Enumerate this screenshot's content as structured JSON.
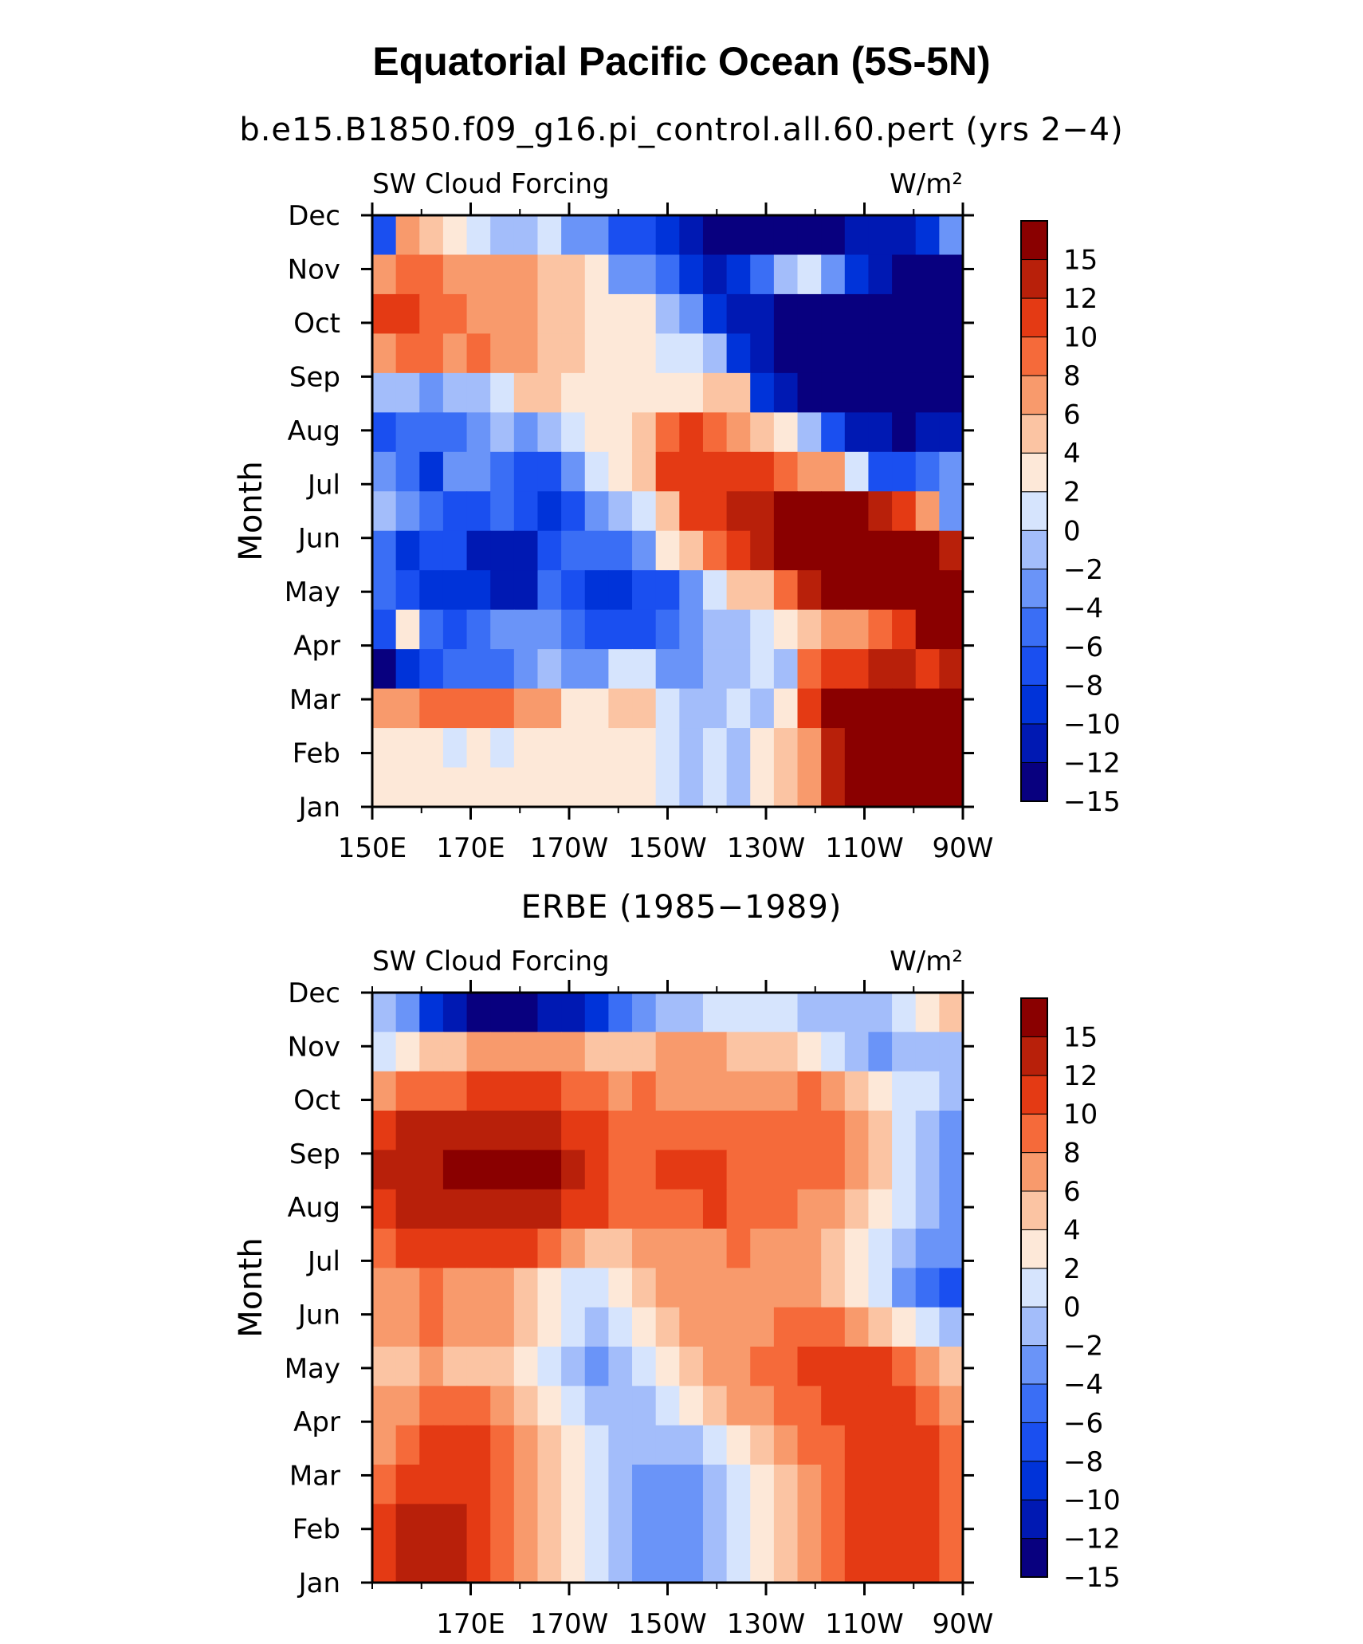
{
  "title": "Equatorial Pacific Ocean (5S-5N)",
  "panels_text": {
    "top_subtitle": "b.e15.B1850.f09_g16.pi_control.all.60.pert (yrs 2−4)",
    "bottom_subtitle": "ERBE (1985−1989)"
  },
  "chart_data": [
    {
      "type": "heatmap",
      "title": "b.e15.B1850.f09_g16.pi_control.all.60.pert (yrs 2−4)",
      "left_label": "SW Cloud Forcing",
      "right_label": "W/m²",
      "ylabel": "Month",
      "xlabel": "",
      "x_ticks": [
        "150E",
        "170E",
        "170W",
        "150W",
        "130W",
        "110W",
        "90W"
      ],
      "y_ticks": [
        "Jan",
        "Feb",
        "Mar",
        "Apr",
        "May",
        "Jun",
        "Jul",
        "Aug",
        "Sep",
        "Oct",
        "Nov",
        "Dec"
      ],
      "x_range": [
        "150E",
        "90W"
      ],
      "y_range": [
        "Jan",
        "Dec"
      ],
      "colorbar": {
        "levels": [
          -15,
          -12,
          -10,
          -8,
          -6,
          -4,
          -2,
          0,
          2,
          4,
          6,
          8,
          10,
          12,
          15
        ],
        "labels": [
          "15",
          "12",
          "10",
          "8",
          "6",
          "4",
          "2",
          "0",
          "−2",
          "−4",
          "−6",
          "−8",
          "−10",
          "−12",
          "−15"
        ],
        "colors": [
          "#08007f",
          "#0019b3",
          "#0033d9",
          "#1a4ff0",
          "#3a6ef5",
          "#6a94f8",
          "#a3bdfa",
          "#d6e4fd",
          "#fde8d8",
          "#fbc4a3",
          "#f89a6c",
          "#f56a3a",
          "#e43a14",
          "#b8200a",
          "#8a0000"
        ]
      },
      "grid": [
        [
          3,
          10,
          9,
          8,
          7,
          6,
          6,
          7,
          5,
          5,
          3,
          3,
          2,
          1,
          0,
          0,
          0,
          0,
          0,
          0,
          1,
          1,
          1,
          2,
          5
        ],
        [
          10,
          11,
          11,
          10,
          10,
          10,
          10,
          9,
          9,
          8,
          5,
          5,
          4,
          2,
          1,
          2,
          4,
          6,
          7,
          5,
          2,
          1,
          0,
          0,
          0
        ],
        [
          12,
          12,
          11,
          11,
          10,
          10,
          10,
          9,
          9,
          8,
          8,
          8,
          6,
          5,
          2,
          1,
          1,
          0,
          0,
          0,
          0,
          0,
          0,
          0,
          0
        ],
        [
          10,
          11,
          11,
          10,
          11,
          10,
          10,
          9,
          9,
          8,
          8,
          8,
          7,
          7,
          6,
          2,
          1,
          0,
          0,
          0,
          0,
          0,
          0,
          0,
          0
        ],
        [
          6,
          6,
          5,
          6,
          6,
          7,
          9,
          9,
          8,
          8,
          8,
          8,
          8,
          8,
          9,
          9,
          2,
          1,
          0,
          0,
          0,
          0,
          0,
          0,
          0
        ],
        [
          3,
          4,
          4,
          4,
          5,
          6,
          5,
          6,
          7,
          8,
          8,
          9,
          11,
          12,
          11,
          10,
          9,
          8,
          6,
          3,
          1,
          1,
          0,
          1,
          1
        ],
        [
          5,
          4,
          2,
          5,
          5,
          4,
          3,
          3,
          5,
          7,
          8,
          9,
          12,
          12,
          12,
          12,
          12,
          11,
          10,
          10,
          7,
          3,
          3,
          4,
          5
        ],
        [
          6,
          5,
          4,
          3,
          3,
          4,
          3,
          2,
          3,
          5,
          6,
          7,
          9,
          12,
          12,
          13,
          13,
          14,
          14,
          14,
          14,
          13,
          12,
          10,
          5
        ],
        [
          4,
          2,
          3,
          3,
          1,
          1,
          1,
          3,
          4,
          4,
          4,
          5,
          8,
          9,
          11,
          12,
          13,
          14,
          14,
          14,
          14,
          14,
          14,
          14,
          13
        ],
        [
          4,
          3,
          2,
          2,
          2,
          1,
          1,
          4,
          3,
          2,
          2,
          3,
          3,
          5,
          7,
          9,
          9,
          11,
          13,
          14,
          14,
          14,
          14,
          14,
          14
        ],
        [
          3,
          8,
          4,
          3,
          4,
          5,
          5,
          5,
          4,
          3,
          3,
          3,
          4,
          5,
          6,
          6,
          7,
          8,
          9,
          10,
          10,
          11,
          12,
          14,
          14
        ],
        [
          0,
          2,
          3,
          4,
          4,
          4,
          5,
          6,
          5,
          5,
          7,
          7,
          5,
          5,
          6,
          6,
          7,
          6,
          11,
          12,
          12,
          13,
          13,
          12,
          13
        ],
        [
          10,
          10,
          11,
          11,
          11,
          11,
          10,
          10,
          8,
          8,
          9,
          9,
          7,
          6,
          6,
          7,
          6,
          8,
          12,
          14,
          14,
          14,
          14,
          14,
          14
        ],
        [
          8,
          8,
          8,
          7,
          8,
          7,
          8,
          8,
          8,
          8,
          8,
          8,
          7,
          6,
          7,
          6,
          8,
          9,
          10,
          13,
          14,
          14,
          14,
          14,
          14
        ],
        [
          8,
          8,
          8,
          8,
          8,
          8,
          8,
          8,
          8,
          8,
          8,
          8,
          7,
          6,
          7,
          6,
          8,
          9,
          10,
          13,
          14,
          14,
          14,
          14,
          14
        ]
      ]
    },
    {
      "type": "heatmap",
      "title": "ERBE (1985−1989)",
      "left_label": "SW Cloud Forcing",
      "right_label": "W/m²",
      "ylabel": "Month",
      "xlabel": "",
      "x_ticks": [
        "170E",
        "170W",
        "150W",
        "130W",
        "110W",
        "90W"
      ],
      "y_ticks": [
        "Jan",
        "Feb",
        "Mar",
        "Apr",
        "May",
        "Jun",
        "Jul",
        "Aug",
        "Sep",
        "Oct",
        "Nov",
        "Dec"
      ],
      "x_range": [
        "150E",
        "90W"
      ],
      "y_range": [
        "Jan",
        "Dec"
      ],
      "colorbar": {
        "levels": [
          -15,
          -12,
          -10,
          -8,
          -6,
          -4,
          -2,
          0,
          2,
          4,
          6,
          8,
          10,
          12,
          15
        ],
        "labels": [
          "15",
          "12",
          "10",
          "8",
          "6",
          "4",
          "2",
          "0",
          "−2",
          "−4",
          "−6",
          "−8",
          "−10",
          "−12",
          "−15"
        ],
        "colors": [
          "#08007f",
          "#0019b3",
          "#0033d9",
          "#1a4ff0",
          "#3a6ef5",
          "#6a94f8",
          "#a3bdfa",
          "#d6e4fd",
          "#fde8d8",
          "#fbc4a3",
          "#f89a6c",
          "#f56a3a",
          "#e43a14",
          "#b8200a",
          "#8a0000"
        ]
      },
      "grid": [
        [
          6,
          5,
          2,
          1,
          0,
          0,
          0,
          1,
          1,
          2,
          4,
          5,
          6,
          6,
          7,
          7,
          7,
          7,
          6,
          6,
          6,
          6,
          7,
          8,
          9
        ],
        [
          7,
          8,
          9,
          9,
          10,
          10,
          10,
          10,
          10,
          9,
          9,
          9,
          10,
          10,
          10,
          9,
          9,
          9,
          8,
          7,
          6,
          5,
          6,
          6,
          6
        ],
        [
          10,
          11,
          11,
          11,
          12,
          12,
          12,
          12,
          11,
          11,
          10,
          11,
          10,
          10,
          10,
          10,
          10,
          10,
          11,
          10,
          9,
          8,
          7,
          7,
          6
        ],
        [
          12,
          13,
          13,
          13,
          13,
          13,
          13,
          13,
          12,
          12,
          11,
          11,
          11,
          11,
          11,
          11,
          11,
          11,
          11,
          11,
          10,
          9,
          7,
          6,
          5
        ],
        [
          13,
          13,
          13,
          14,
          14,
          14,
          14,
          14,
          13,
          12,
          11,
          11,
          12,
          12,
          12,
          11,
          11,
          11,
          11,
          11,
          10,
          9,
          7,
          6,
          5
        ],
        [
          12,
          13,
          13,
          13,
          13,
          13,
          13,
          13,
          12,
          12,
          11,
          11,
          11,
          11,
          12,
          11,
          11,
          11,
          10,
          10,
          9,
          8,
          7,
          6,
          5
        ],
        [
          11,
          12,
          12,
          12,
          12,
          12,
          12,
          11,
          10,
          9,
          9,
          10,
          10,
          10,
          10,
          11,
          10,
          10,
          10,
          9,
          8,
          7,
          6,
          5,
          5
        ],
        [
          10,
          10,
          11,
          10,
          10,
          10,
          9,
          8,
          7,
          7,
          8,
          9,
          10,
          10,
          10,
          10,
          10,
          10,
          10,
          9,
          8,
          7,
          5,
          4,
          3
        ],
        [
          10,
          10,
          11,
          10,
          10,
          10,
          9,
          8,
          7,
          6,
          7,
          8,
          9,
          10,
          10,
          10,
          10,
          11,
          11,
          11,
          10,
          9,
          8,
          7,
          6
        ],
        [
          9,
          9,
          10,
          9,
          9,
          9,
          8,
          7,
          6,
          5,
          6,
          7,
          8,
          9,
          10,
          10,
          11,
          11,
          12,
          12,
          12,
          12,
          11,
          10,
          9
        ],
        [
          10,
          10,
          11,
          11,
          11,
          10,
          9,
          8,
          7,
          6,
          6,
          6,
          7,
          8,
          9,
          10,
          10,
          11,
          11,
          12,
          12,
          12,
          12,
          11,
          10
        ],
        [
          10,
          11,
          12,
          12,
          12,
          11,
          10,
          9,
          8,
          7,
          6,
          6,
          6,
          6,
          7,
          8,
          9,
          10,
          11,
          11,
          12,
          12,
          12,
          12,
          11
        ],
        [
          11,
          12,
          12,
          12,
          12,
          11,
          10,
          9,
          8,
          7,
          6,
          5,
          5,
          5,
          6,
          7,
          8,
          9,
          10,
          11,
          12,
          12,
          12,
          12,
          11
        ],
        [
          12,
          13,
          13,
          13,
          12,
          11,
          10,
          9,
          8,
          7,
          6,
          5,
          5,
          5,
          6,
          7,
          8,
          9,
          10,
          11,
          12,
          12,
          12,
          12,
          11
        ],
        [
          12,
          13,
          13,
          13,
          12,
          11,
          10,
          9,
          8,
          7,
          6,
          5,
          5,
          5,
          6,
          7,
          8,
          9,
          10,
          11,
          12,
          12,
          12,
          12,
          11
        ]
      ]
    }
  ]
}
